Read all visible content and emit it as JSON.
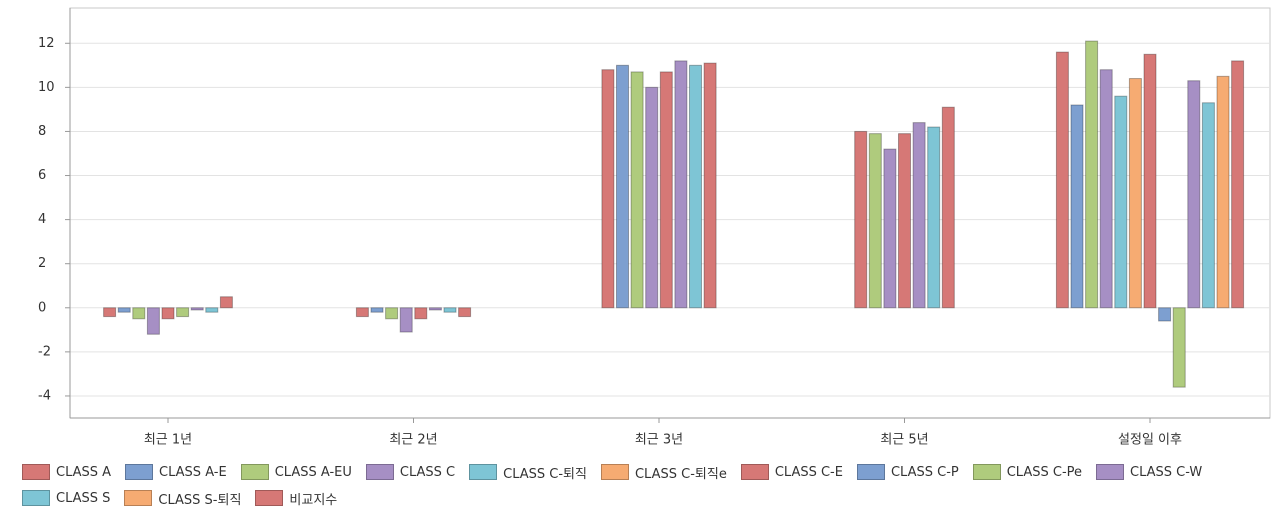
{
  "chart_data": {
    "type": "bar",
    "categories": [
      "최근 1년",
      "최근 2년",
      "최근 3년",
      "최근 5년",
      "설정일 이후"
    ],
    "series": [
      {
        "name": "CLASS A",
        "color": "#d67876",
        "values": [
          -0.4,
          -0.4,
          10.8,
          8.0,
          11.6
        ]
      },
      {
        "name": "CLASS A-E",
        "color": "#7d9fd0",
        "values": [
          -0.2,
          -0.2,
          11.0,
          null,
          9.2
        ]
      },
      {
        "name": "CLASS A-EU",
        "color": "#afcb7d",
        "values": [
          -0.5,
          -0.5,
          10.7,
          7.9,
          12.1
        ]
      },
      {
        "name": "CLASS C",
        "color": "#a68fc4",
        "values": [
          -1.2,
          -1.1,
          10.0,
          7.2,
          10.8
        ]
      },
      {
        "name": "CLASS C-퇴직",
        "color": "#7ec5d5",
        "values": [
          null,
          null,
          null,
          null,
          9.6
        ]
      },
      {
        "name": "CLASS C-퇴직e",
        "color": "#f6ab72",
        "values": [
          null,
          null,
          null,
          null,
          10.4
        ]
      },
      {
        "name": "CLASS C-E",
        "color": "#d67876",
        "values": [
          -0.5,
          -0.5,
          10.7,
          7.9,
          11.5
        ]
      },
      {
        "name": "CLASS C-P",
        "color": "#7d9fd0",
        "values": [
          null,
          null,
          null,
          null,
          -0.6
        ]
      },
      {
        "name": "CLASS C-Pe",
        "color": "#afcb7d",
        "values": [
          -0.4,
          null,
          null,
          null,
          -3.6
        ]
      },
      {
        "name": "CLASS C-W",
        "color": "#a68fc4",
        "values": [
          -0.1,
          -0.1,
          11.2,
          8.4,
          10.3
        ]
      },
      {
        "name": "CLASS S",
        "color": "#7ec5d5",
        "values": [
          -0.2,
          -0.2,
          11.0,
          8.2,
          9.3
        ]
      },
      {
        "name": "CLASS S-퇴직",
        "color": "#f6ab72",
        "values": [
          null,
          null,
          null,
          null,
          10.5
        ]
      },
      {
        "name": "비교지수",
        "color": "#d67876",
        "values": [
          0.5,
          -0.4,
          11.1,
          9.1,
          11.2
        ]
      }
    ],
    "ylim": [
      -5,
      13.6
    ],
    "yticks": [
      -4,
      -2,
      0,
      2,
      4,
      6,
      8,
      10,
      12
    ],
    "grid": true
  }
}
